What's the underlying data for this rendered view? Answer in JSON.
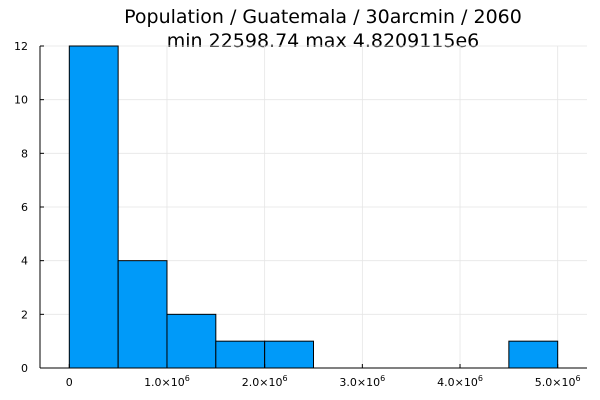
{
  "chart_data": {
    "type": "histogram",
    "title": "Population / Guatemala / 30arcmin / 2060",
    "subtitle": "min 22598.74  max 4.8209115e6",
    "xlabel": "",
    "ylabel": "",
    "xlim": [
      -300000,
      5300000
    ],
    "ylim": [
      0,
      12
    ],
    "grid": true,
    "legend": "none",
    "bar_color": "#009AF9",
    "bin_edges": [
      0,
      500000,
      1000000,
      1500000,
      2000000,
      2500000,
      3000000,
      3500000,
      4000000,
      4500000,
      5000000
    ],
    "counts": [
      12,
      4,
      2,
      1,
      1,
      0,
      0,
      0,
      0,
      1
    ],
    "x_ticks": [
      {
        "value": 0,
        "base": "0",
        "exp": ""
      },
      {
        "value": 1000000,
        "base": "1.0×10",
        "exp": "6"
      },
      {
        "value": 2000000,
        "base": "2.0×10",
        "exp": "6"
      },
      {
        "value": 3000000,
        "base": "3.0×10",
        "exp": "6"
      },
      {
        "value": 4000000,
        "base": "4.0×10",
        "exp": "6"
      },
      {
        "value": 5000000,
        "base": "5.0×10",
        "exp": "6"
      }
    ],
    "y_ticks": [
      0,
      2,
      4,
      6,
      8,
      10,
      12
    ]
  }
}
